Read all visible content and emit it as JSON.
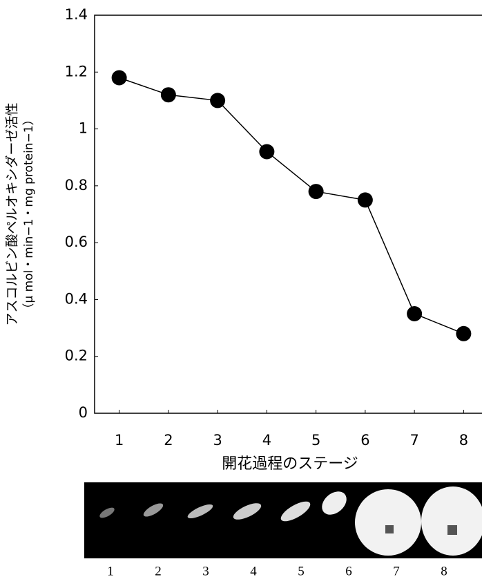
{
  "chart_data": {
    "type": "line",
    "x_label": "開花過程のステージ",
    "y_label": [
      "アスコルビン酸ペルオキシダーゼ活性",
      "（μ mol・min−1・mg protein−1）"
    ],
    "x": [
      1,
      2,
      3,
      4,
      5,
      6,
      7,
      8
    ],
    "series": [
      {
        "color": "#000000",
        "values": [
          1.18,
          1.12,
          1.1,
          0.92,
          0.78,
          0.75,
          0.35,
          0.28
        ]
      }
    ],
    "xlim": [
      0.5,
      8.5
    ],
    "xticks": [
      1,
      2,
      3,
      4,
      5,
      6,
      7,
      8
    ],
    "ylim": [
      0,
      1.4
    ],
    "yticks": [
      0,
      0.2,
      0.4,
      0.6,
      0.8,
      1,
      1.2,
      1.4
    ],
    "grid": false
  },
  "image_strip": {
    "labels": [
      "1",
      "2",
      "3",
      "4",
      "5",
      "6",
      "7",
      "8"
    ]
  }
}
